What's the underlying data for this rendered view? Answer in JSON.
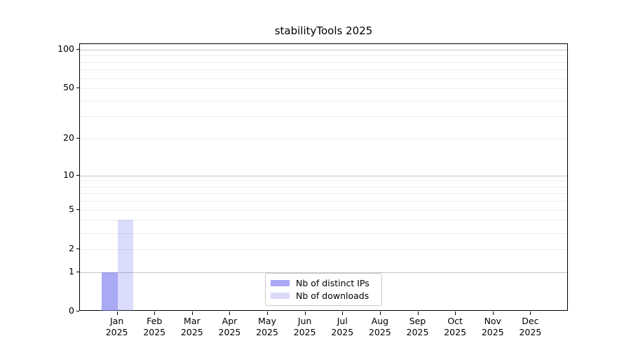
{
  "chart_data": {
    "type": "bar",
    "title": "stabilityTools 2025",
    "categories": [
      "Jan",
      "Feb",
      "Mar",
      "Apr",
      "May",
      "Jun",
      "Jul",
      "Aug",
      "Sep",
      "Oct",
      "Nov",
      "Dec"
    ],
    "year_label": "2025",
    "series": [
      {
        "name": "Nb of distinct IPs",
        "color": "#a9a9f4",
        "bar_rgba": "rgba(116,116,238,0.62)",
        "values": [
          1,
          0,
          0,
          0,
          0,
          0,
          0,
          0,
          0,
          0,
          0,
          0
        ]
      },
      {
        "name": "Nb of downloads",
        "color": "#dbdbf9",
        "bar_rgba": "rgba(116,116,238,0.26)",
        "values": [
          4,
          0,
          0,
          0,
          0,
          0,
          0,
          0,
          0,
          0,
          0,
          0
        ]
      }
    ],
    "yscale": "log1p",
    "ylim": [
      0,
      110
    ],
    "y_ticks": [
      0,
      1,
      2,
      5,
      10,
      20,
      50,
      100
    ],
    "y_major_gridlines": [
      1,
      10,
      100
    ],
    "y_minor_gridlines": [
      2,
      3,
      4,
      5,
      6,
      7,
      8,
      9,
      20,
      30,
      40,
      50,
      60,
      70,
      80,
      90
    ],
    "grid_major_color": "#c4c4c4",
    "grid_minor_color": "#ededed",
    "axis_color": "#000000",
    "text_color": "#000000",
    "legend_position": "lower center",
    "xlabel": "",
    "ylabel": ""
  }
}
